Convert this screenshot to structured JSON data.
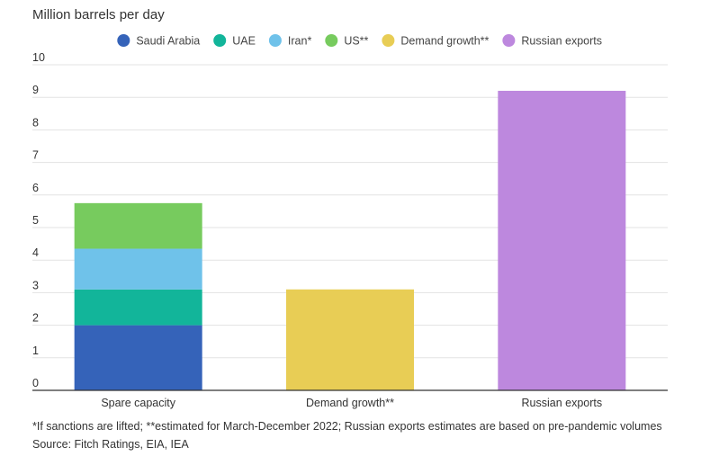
{
  "chart_data": {
    "type": "bar",
    "stacked": true,
    "ylabel": "Million barrels per day",
    "ylim": [
      0,
      10
    ],
    "yticks": [
      0,
      1,
      2,
      3,
      4,
      5,
      6,
      7,
      8,
      9,
      10
    ],
    "grid": true,
    "legend_position": "top-right",
    "categories": [
      "Spare capacity",
      "Demand growth**",
      "Russian exports"
    ],
    "series": [
      {
        "name": "Saudi Arabia",
        "color": "#3563b9",
        "values": [
          2.0,
          0,
          0
        ]
      },
      {
        "name": "UAE",
        "color": "#12b59a",
        "values": [
          1.1,
          0,
          0
        ]
      },
      {
        "name": "Iran*",
        "color": "#6fc2ea",
        "values": [
          1.25,
          0,
          0
        ]
      },
      {
        "name": "US**",
        "color": "#77cb5e",
        "values": [
          1.4,
          0,
          0
        ]
      },
      {
        "name": "Demand growth**",
        "color": "#e8cd55",
        "values": [
          0,
          3.1,
          0
        ]
      },
      {
        "name": "Russian exports",
        "color": "#bd88de",
        "values": [
          0,
          0,
          9.2
        ]
      }
    ]
  },
  "footnote": "*If sanctions are lifted; **estimated for March-December 2022; Russian exports estimates are based on pre-pandemic volumes",
  "source": "Source: Fitch Ratings, EIA, IEA"
}
